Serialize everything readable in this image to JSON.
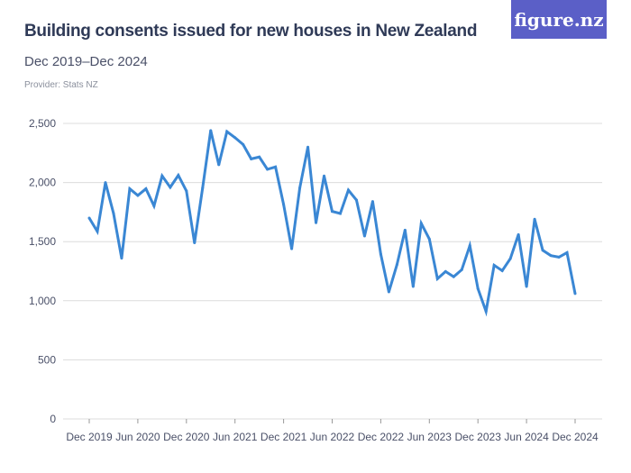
{
  "header": {
    "title": "Building consents issued for new houses in New Zealand",
    "subtitle": "Dec 2019–Dec 2024",
    "provider": "Provider: Stats NZ",
    "logo": "figure.nz"
  },
  "colors": {
    "line": "#3a87d4",
    "grid": "#dcdcdc",
    "logo_bg": "#5b5fc7"
  },
  "chart_data": {
    "type": "line",
    "title": "Building consents issued for new houses in New Zealand",
    "ylim": [
      0,
      2500
    ],
    "y_ticks": [
      0,
      500,
      1000,
      1500,
      2000,
      2500
    ],
    "y_tick_labels": [
      "0",
      "500",
      "1,000",
      "1,500",
      "2,000",
      "2,500"
    ],
    "x_start": "Dec 2019",
    "x_end": "Dec 2024",
    "x_frequency": "monthly",
    "x_tick_labels": [
      "Dec 2019",
      "Jun 2020",
      "Dec 2020",
      "Jun 2021",
      "Dec 2021",
      "Jun 2022",
      "Dec 2022",
      "Jun 2023",
      "Dec 2023",
      "Jun 2024",
      "Dec 2024"
    ],
    "grid": true,
    "series": [
      {
        "values": [
          1700,
          1586,
          2000,
          1739,
          1360,
          1947,
          1891,
          1947,
          1802,
          2056,
          1960,
          2061,
          1929,
          1490,
          1954,
          2440,
          2150,
          2431,
          2380,
          2322,
          2200,
          2216,
          2112,
          2132,
          1815,
          1440,
          1954,
          2300,
          1660,
          2056,
          1756,
          1738,
          1936,
          1852,
          1547,
          1840,
          1394,
          1075,
          1305,
          1598,
          1120,
          1654,
          1522,
          1186,
          1247,
          1203,
          1262,
          1466,
          1102,
          910,
          1300,
          1254,
          1356,
          1560,
          1120,
          1690,
          1427,
          1382,
          1369,
          1407,
          1060
        ]
      }
    ]
  }
}
